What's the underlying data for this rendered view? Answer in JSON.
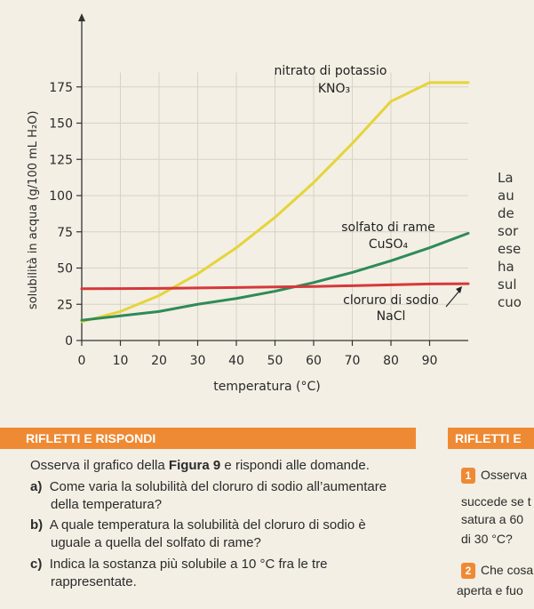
{
  "chart_data": {
    "type": "line",
    "xlabel": "temperatura (°C)",
    "ylabel": "solubilità in acqua (g/100 mL H₂O)",
    "xlim": [
      0,
      100
    ],
    "ylim": [
      0,
      180
    ],
    "x_ticks": [
      "0",
      "10",
      "20",
      "30",
      "40",
      "50",
      "60",
      "70",
      "80",
      "90"
    ],
    "y_ticks": [
      "0",
      "25",
      "50",
      "75",
      "100",
      "125",
      "150",
      "175"
    ],
    "grid": true,
    "series": [
      {
        "name": "nitrato di potassio",
        "formula": "KNO₃",
        "color": "#e5d43a",
        "x": [
          0,
          10,
          20,
          30,
          40,
          50,
          60,
          70,
          80,
          90,
          100
        ],
        "y": [
          13,
          20,
          31,
          46,
          64,
          85,
          109,
          136,
          165,
          178,
          178
        ]
      },
      {
        "name": "solfato di rame",
        "formula": "CuSO₄",
        "color": "#2e8b57",
        "x": [
          0,
          10,
          20,
          30,
          40,
          50,
          60,
          70,
          80,
          90,
          100
        ],
        "y": [
          14,
          17,
          20,
          25,
          29,
          34,
          40,
          47,
          55,
          64,
          74
        ]
      },
      {
        "name": "cloruro di sodio",
        "formula": "NaCl",
        "color": "#d6383a",
        "x": [
          0,
          10,
          20,
          30,
          40,
          50,
          60,
          70,
          80,
          90,
          100
        ],
        "y": [
          35.7,
          35.8,
          36,
          36.3,
          36.6,
          37,
          37.3,
          37.8,
          38.4,
          39,
          39.2
        ]
      }
    ]
  },
  "side_text": [
    "La",
    "au",
    "de",
    "sor",
    "ese",
    "ha",
    "sul",
    "cuo"
  ],
  "section": {
    "title": "RIFLETTI E RISPONDI",
    "right_title": "RIFLETTI E"
  },
  "intro": {
    "pre": "Osserva il grafico della ",
    "bold": "Figura 9",
    "post": " e rispondi alle domande."
  },
  "questions": [
    {
      "label": "a)",
      "text_line1": "Come varia la solubilità del cloruro di sodio all’aumentare",
      "text_line2": "della temperatura?"
    },
    {
      "label": "b)",
      "text_line1": "A quale temperatura la solubilità del cloruro di sodio è",
      "text_line2": "uguale a quella del solfato di rame?"
    },
    {
      "label": "c)",
      "text_line1": "Indica la sostanza più solubile a 10 °C fra le tre",
      "text_line2": "rappresentate."
    }
  ],
  "right_col": [
    {
      "num": "1",
      "lines": [
        "Osserva",
        "succede se t",
        "satura a 60",
        "di 30 °C?"
      ]
    },
    {
      "num": "2",
      "lines": [
        "Che cosa",
        "aperta e fuo"
      ]
    }
  ]
}
